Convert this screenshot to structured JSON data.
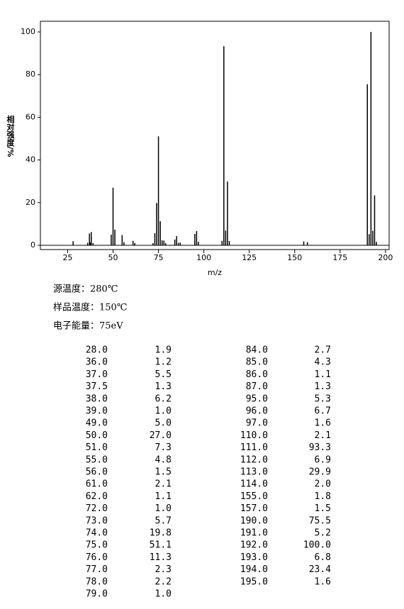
{
  "chart_data": {
    "type": "bar",
    "x_label": "m/z",
    "y_label": "相对强度/%",
    "x": [
      28,
      36,
      37,
      37.5,
      38,
      39,
      49,
      50,
      51,
      55,
      56,
      61,
      62,
      72,
      73,
      74,
      75,
      76,
      77,
      78,
      79,
      84,
      85,
      86,
      87,
      95,
      96,
      97,
      110,
      111,
      112,
      113,
      114,
      155,
      157,
      190,
      191,
      192,
      193,
      194,
      195
    ],
    "values": [
      1.9,
      1.2,
      5.5,
      1.3,
      6.2,
      1.0,
      5.0,
      27.0,
      7.3,
      4.8,
      1.5,
      2.1,
      1.1,
      1.0,
      5.7,
      19.8,
      51.1,
      11.3,
      2.3,
      2.2,
      1.0,
      2.7,
      4.3,
      1.1,
      1.3,
      5.3,
      6.7,
      1.6,
      2.1,
      93.3,
      6.9,
      29.9,
      2.0,
      1.8,
      1.5,
      75.5,
      5.2,
      100.0,
      6.8,
      23.4,
      1.6
    ],
    "color": "#000000",
    "xlim": [
      10,
      202
    ],
    "ylim": [
      -2,
      105
    ],
    "xticks": [
      25,
      50,
      75,
      100,
      125,
      150,
      175,
      200
    ],
    "yticks": [
      0,
      20,
      40,
      60,
      80,
      100
    ]
  },
  "conditions": [
    "源温度：280℃",
    "样品温度：150℃",
    "电子能量：75eV"
  ],
  "peak_table": {
    "left": [
      [
        "28.0",
        "1.9"
      ],
      [
        "36.0",
        "1.2"
      ],
      [
        "37.0",
        "5.5"
      ],
      [
        "37.5",
        "1.3"
      ],
      [
        "38.0",
        "6.2"
      ],
      [
        "39.0",
        "1.0"
      ],
      [
        "49.0",
        "5.0"
      ],
      [
        "50.0",
        "27.0"
      ],
      [
        "51.0",
        "7.3"
      ],
      [
        "55.0",
        "4.8"
      ],
      [
        "56.0",
        "1.5"
      ],
      [
        "61.0",
        "2.1"
      ],
      [
        "62.0",
        "1.1"
      ],
      [
        "72.0",
        "1.0"
      ],
      [
        "73.0",
        "5.7"
      ],
      [
        "74.0",
        "19.8"
      ],
      [
        "75.0",
        "51.1"
      ],
      [
        "76.0",
        "11.3"
      ],
      [
        "77.0",
        "2.3"
      ],
      [
        "78.0",
        "2.2"
      ],
      [
        "79.0",
        "1.0"
      ]
    ],
    "right": [
      [
        "84.0",
        "2.7"
      ],
      [
        "85.0",
        "4.3"
      ],
      [
        "86.0",
        "1.1"
      ],
      [
        "87.0",
        "1.3"
      ],
      [
        "95.0",
        "5.3"
      ],
      [
        "96.0",
        "6.7"
      ],
      [
        "97.0",
        "1.6"
      ],
      [
        "110.0",
        "2.1"
      ],
      [
        "111.0",
        "93.3"
      ],
      [
        "112.0",
        "6.9"
      ],
      [
        "113.0",
        "29.9"
      ],
      [
        "114.0",
        "2.0"
      ],
      [
        "155.0",
        "1.8"
      ],
      [
        "157.0",
        "1.5"
      ],
      [
        "190.0",
        "75.5"
      ],
      [
        "191.0",
        "5.2"
      ],
      [
        "192.0",
        "100.0"
      ],
      [
        "193.0",
        "6.8"
      ],
      [
        "194.0",
        "23.4"
      ],
      [
        "195.0",
        "1.6"
      ]
    ]
  }
}
